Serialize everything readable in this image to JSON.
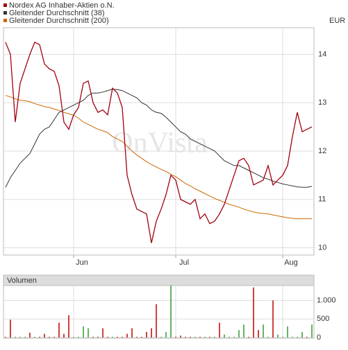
{
  "chart_data": [
    {
      "type": "line",
      "watermark": "OnVista",
      "unit": "EUR",
      "categories": [
        null,
        null,
        null,
        null,
        null,
        null,
        null,
        null,
        null,
        null,
        null,
        null,
        null,
        null,
        "Jun",
        null,
        null,
        null,
        null,
        null,
        null,
        null,
        null,
        null,
        null,
        null,
        null,
        null,
        null,
        null,
        null,
        null,
        null,
        null,
        null,
        "Jul",
        null,
        null,
        null,
        null,
        null,
        null,
        null,
        null,
        null,
        null,
        null,
        null,
        null,
        null,
        null,
        null,
        null,
        null,
        null,
        null,
        null,
        "Aug",
        null,
        null,
        null,
        null,
        null,
        null
      ],
      "ylim": [
        9.85,
        14.55
      ],
      "yticks": [
        10,
        11,
        12,
        13,
        14
      ],
      "grid": true,
      "series": [
        {
          "name": "Nordex AG Inhaber-Aktien o.N.",
          "color": "#a0000f",
          "values": [
            14.25,
            14.0,
            12.6,
            13.4,
            13.7,
            14.0,
            14.25,
            14.2,
            13.8,
            13.7,
            13.65,
            13.35,
            12.6,
            12.45,
            12.75,
            12.9,
            13.4,
            13.45,
            13.0,
            12.8,
            12.85,
            12.75,
            13.3,
            13.2,
            12.9,
            11.5,
            11.1,
            10.8,
            10.75,
            10.7,
            10.1,
            10.55,
            10.8,
            11.1,
            11.5,
            11.4,
            11.0,
            10.95,
            10.9,
            11.0,
            10.6,
            10.7,
            10.5,
            10.55,
            10.7,
            10.9,
            11.2,
            11.5,
            11.8,
            11.85,
            11.7,
            11.3,
            11.35,
            11.4,
            11.7,
            11.3,
            11.4,
            11.5,
            11.7,
            12.3,
            12.8,
            12.4,
            12.45,
            12.5
          ]
        },
        {
          "name": "Gleitender Durchschnitt (38)",
          "color": "#333333",
          "values": [
            11.25,
            11.45,
            11.6,
            11.75,
            11.85,
            11.95,
            12.15,
            12.35,
            12.45,
            12.5,
            12.65,
            12.8,
            12.85,
            12.9,
            12.95,
            13.0,
            13.05,
            13.15,
            13.2,
            13.2,
            13.22,
            13.25,
            13.28,
            13.27,
            13.25,
            13.2,
            13.15,
            13.1,
            13.0,
            12.95,
            12.85,
            12.8,
            12.78,
            12.7,
            12.6,
            12.5,
            12.4,
            12.35,
            12.25,
            12.2,
            12.15,
            12.1,
            12.05,
            12.0,
            11.9,
            11.8,
            11.75,
            11.7,
            11.7,
            11.65,
            11.6,
            11.55,
            11.5,
            11.45,
            11.42,
            11.38,
            11.35,
            11.32,
            11.3,
            11.28,
            11.26,
            11.25,
            11.25,
            11.27
          ]
        },
        {
          "name": "Gleitender Durchschnitt (200)",
          "color": "#cc6600",
          "values": [
            13.15,
            13.12,
            13.08,
            13.05,
            13.04,
            13.02,
            12.98,
            12.95,
            12.92,
            12.9,
            12.87,
            12.84,
            12.8,
            12.77,
            12.74,
            12.68,
            12.6,
            12.55,
            12.5,
            12.45,
            12.42,
            12.38,
            12.3,
            12.25,
            12.2,
            12.1,
            12.0,
            11.92,
            11.85,
            11.78,
            11.72,
            11.67,
            11.62,
            11.58,
            11.52,
            11.47,
            11.4,
            11.33,
            11.28,
            11.22,
            11.17,
            11.12,
            11.07,
            11.02,
            10.98,
            10.94,
            10.9,
            10.87,
            10.84,
            10.8,
            10.77,
            10.74,
            10.72,
            10.71,
            10.7,
            10.68,
            10.66,
            10.64,
            10.62,
            10.61,
            10.6,
            10.6,
            10.6,
            10.6
          ]
        }
      ]
    },
    {
      "type": "bar",
      "title": "Volumen",
      "ylim": [
        0,
        1400
      ],
      "yticks": [
        0,
        500,
        {
          "value": 1000,
          "label": "1.000"
        }
      ],
      "values": [
        20,
        480,
        20,
        20,
        20,
        130,
        20,
        20,
        100,
        20,
        20,
        400,
        100,
        600,
        20,
        20,
        300,
        250,
        20,
        20,
        250,
        20,
        20,
        20,
        20,
        100,
        250,
        20,
        20,
        150,
        250,
        900,
        20,
        150,
        1400,
        20,
        50,
        20,
        20,
        20,
        20,
        20,
        20,
        20,
        400,
        80,
        20,
        20,
        200,
        350,
        20,
        1350,
        200,
        350,
        20,
        1000,
        80,
        20,
        300,
        20,
        20,
        150,
        20,
        350
      ],
      "colors": [
        "#c00000",
        "#c00000",
        "#339933",
        "#339933",
        "#339933",
        "#c00000",
        "#339933",
        "#c00000",
        "#c00000",
        "#c00000",
        "#c00000",
        "#c00000",
        "#c00000",
        "#c00000",
        "#339933",
        "#339933",
        "#339933",
        "#339933",
        "#c00000",
        "#c00000",
        "#c00000",
        "#c00000",
        "#339933",
        "#c00000",
        "#c00000",
        "#c00000",
        "#c00000",
        "#c00000",
        "#c00000",
        "#c00000",
        "#c00000",
        "#c00000",
        "#339933",
        "#339933",
        "#339933",
        "#c00000",
        "#c00000",
        "#c00000",
        "#c00000",
        "#339933",
        "#c00000",
        "#339933",
        "#c00000",
        "#339933",
        "#c00000",
        "#339933",
        "#339933",
        "#339933",
        "#339933",
        "#339933",
        "#c00000",
        "#c00000",
        "#c00000",
        "#339933",
        "#339933",
        "#c00000",
        "#339933",
        "#339933",
        "#339933",
        "#339933",
        "#339933",
        "#339933",
        "#c00000",
        "#339933"
      ]
    }
  ]
}
